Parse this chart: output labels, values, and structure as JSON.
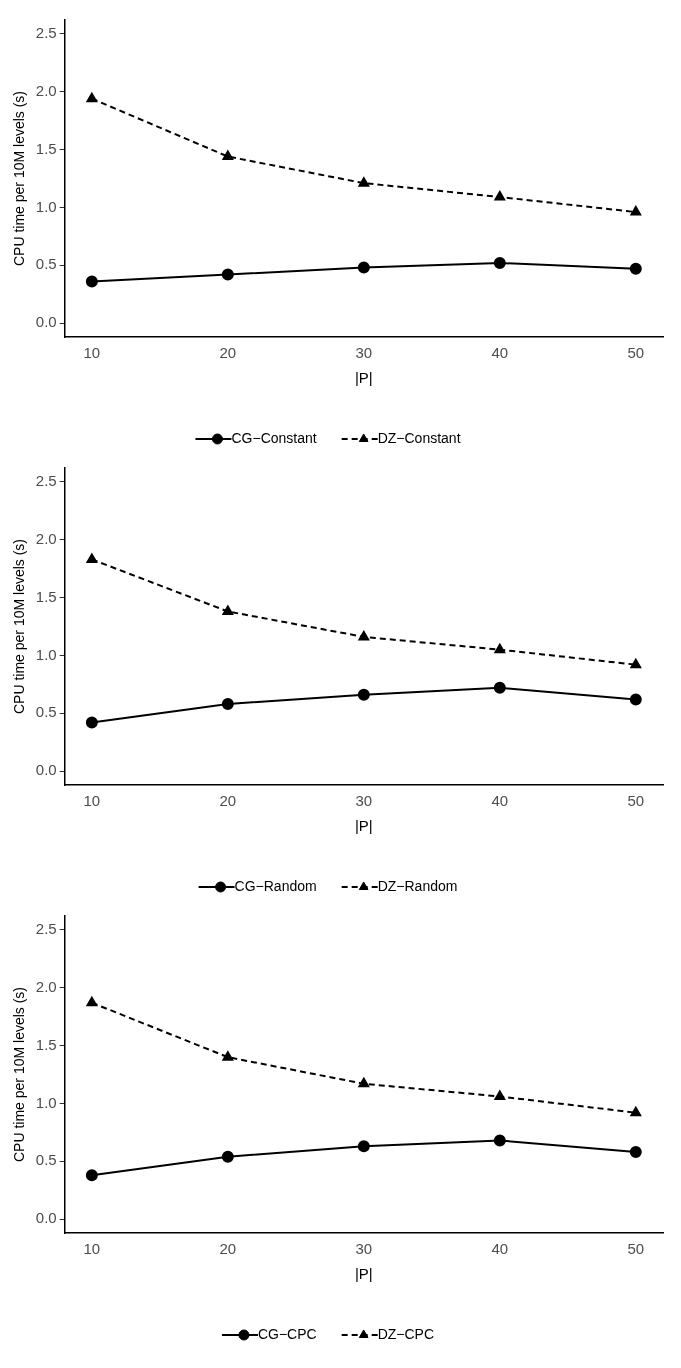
{
  "chart_data": [
    {
      "type": "line",
      "xlabel": "|P|",
      "ylabel": "CPU time per 10M levels (s)",
      "x": [
        10,
        20,
        30,
        40,
        50
      ],
      "xlim": [
        8,
        52
      ],
      "xticks": [
        10,
        20,
        30,
        40,
        50
      ],
      "ylim": [
        -0.12,
        2.62
      ],
      "yticks": [
        {
          "value": 0,
          "label": "0.0"
        },
        0.5,
        {
          "value": 1,
          "label": "1.0"
        },
        1.5,
        {
          "value": 2,
          "label": "2.0"
        },
        2.5
      ],
      "grid": false,
      "legend": "bottom",
      "series": [
        {
          "name": "CG−Constant",
          "color": "#000000",
          "marker": "circle",
          "line_style": "solid",
          "values": [
            0.36,
            0.42,
            0.48,
            0.52,
            0.47
          ]
        },
        {
          "name": "DZ−Constant",
          "color": "#000000",
          "marker": "triangle",
          "line_style": "dashed",
          "values": [
            1.94,
            1.44,
            1.21,
            1.09,
            0.96
          ]
        }
      ]
    },
    {
      "type": "line",
      "xlabel": "|P|",
      "ylabel": "CPU time per 10M levels (s)",
      "x": [
        10,
        20,
        30,
        40,
        50
      ],
      "xlim": [
        8,
        52
      ],
      "xticks": [
        10,
        20,
        30,
        40,
        50
      ],
      "ylim": [
        -0.12,
        2.62
      ],
      "yticks": [
        {
          "value": 0,
          "label": "0.0"
        },
        0.5,
        {
          "value": 1,
          "label": "1.0"
        },
        1.5,
        {
          "value": 2,
          "label": "2.0"
        },
        2.5
      ],
      "grid": false,
      "legend": "bottom",
      "series": [
        {
          "name": "CG−Random",
          "color": "#000000",
          "marker": "circle",
          "line_style": "solid",
          "values": [
            0.42,
            0.58,
            0.66,
            0.72,
            0.62
          ]
        },
        {
          "name": "DZ−Random",
          "color": "#000000",
          "marker": "triangle",
          "line_style": "dashed",
          "values": [
            1.83,
            1.38,
            1.16,
            1.05,
            0.92
          ]
        }
      ]
    },
    {
      "type": "line",
      "xlabel": "|P|",
      "ylabel": "CPU time per 10M levels (s)",
      "x": [
        10,
        20,
        30,
        40,
        50
      ],
      "xlim": [
        8,
        52
      ],
      "xticks": [
        10,
        20,
        30,
        40,
        50
      ],
      "ylim": [
        -0.12,
        2.62
      ],
      "yticks": [
        {
          "value": 0,
          "label": "0.0"
        },
        0.5,
        {
          "value": 1,
          "label": "1.0"
        },
        1.5,
        {
          "value": 2,
          "label": "2.0"
        },
        2.5
      ],
      "grid": false,
      "legend": "bottom",
      "series": [
        {
          "name": "CG−CPC",
          "color": "#000000",
          "marker": "circle",
          "line_style": "solid",
          "values": [
            0.38,
            0.54,
            0.63,
            0.68,
            0.58
          ]
        },
        {
          "name": "DZ−CPC",
          "color": "#000000",
          "marker": "triangle",
          "line_style": "dashed",
          "values": [
            1.87,
            1.4,
            1.17,
            1.06,
            0.92
          ]
        }
      ]
    }
  ]
}
